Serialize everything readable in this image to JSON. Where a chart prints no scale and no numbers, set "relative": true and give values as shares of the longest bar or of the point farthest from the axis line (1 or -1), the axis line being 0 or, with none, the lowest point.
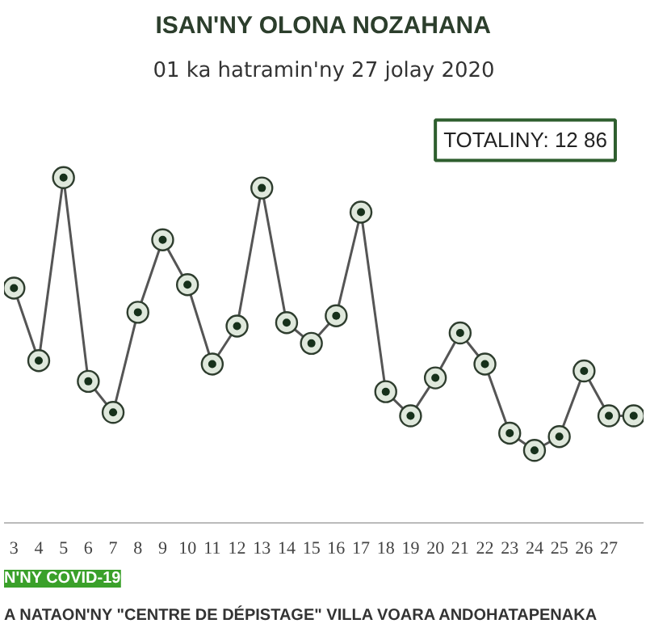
{
  "chart_data": {
    "type": "line",
    "title": "ISAN'NY OLONA NOZAHANA",
    "subtitle": "01 ka hatramin'ny 27 jolay 2020",
    "relative": true,
    "categories": [
      "3",
      "4",
      "5",
      "6",
      "7",
      "8",
      "9",
      "10",
      "11",
      "12",
      "13",
      "14",
      "15",
      "16",
      "17",
      "18",
      "19",
      "20",
      "21",
      "22",
      "23",
      "24",
      "25",
      "26",
      "27",
      null
    ],
    "series": [
      {
        "color": "#555555",
        "values": [
          0.68,
          0.47,
          1,
          0.41,
          0.32,
          0.61,
          0.82,
          0.69,
          0.46,
          0.57,
          0.97,
          0.58,
          0.52,
          0.6,
          0.9,
          0.38,
          0.31,
          0.42,
          0.55,
          0.46,
          0.26,
          0.21,
          0.25,
          0.44,
          0.31,
          0.31
        ]
      }
    ],
    "marker": "circle",
    "line_style": "solid",
    "grid": false,
    "annotations": [
      "TOTALINY: 12 86",
      "N'NY COVID-19",
      "A NATAON'NY \"CENTRE DE DÉPISTAGE\" VILLA VOARA ANDOHATAPENAKA"
    ]
  }
}
